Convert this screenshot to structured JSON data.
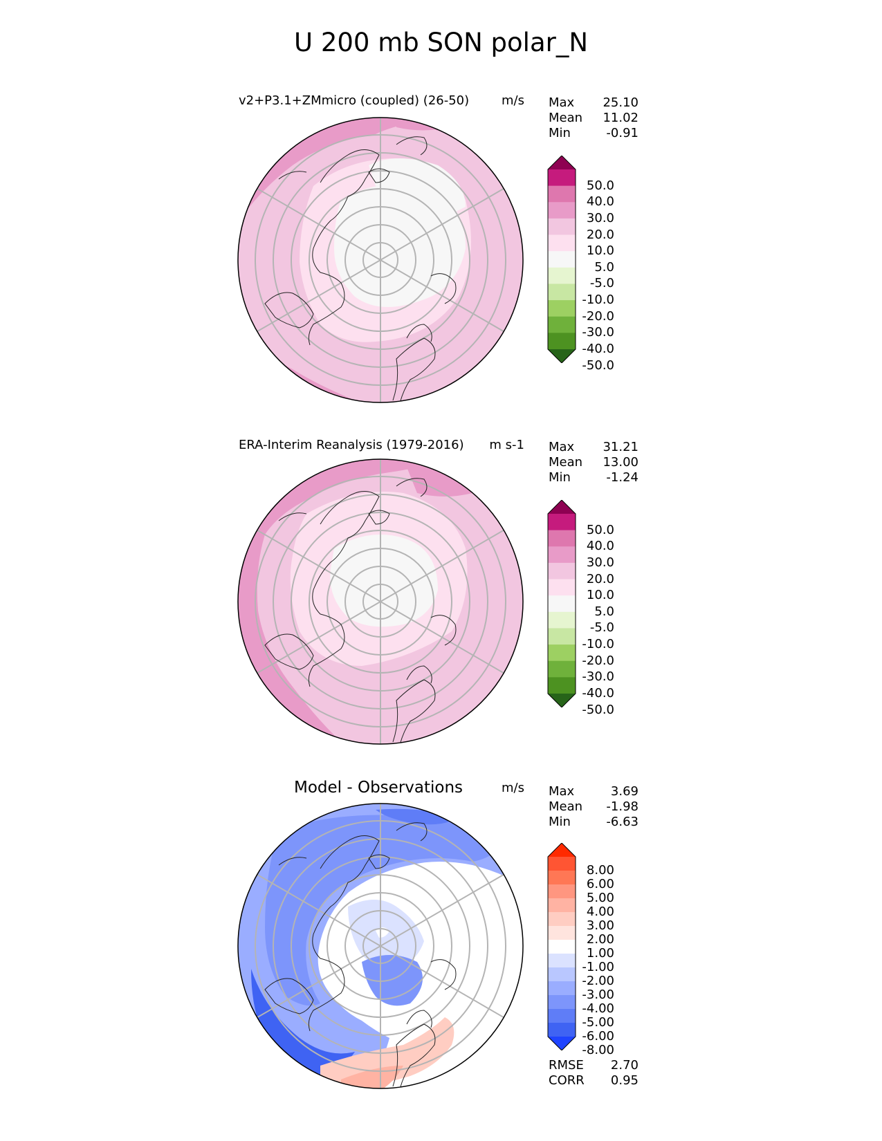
{
  "figure": {
    "title": "U 200 mb SON polar_N"
  },
  "panels": [
    {
      "title": "v2+P3.1+ZMmicro (coupled) (26-50)",
      "units": "m/s",
      "stats": [
        {
          "label": "Max",
          "value": "25.10"
        },
        {
          "label": "Mean",
          "value": "11.02"
        },
        {
          "label": "Min",
          "value": "-0.91"
        }
      ],
      "colorbar": {
        "labels": [
          "50.0",
          "40.0",
          "30.0",
          "20.0",
          "10.0",
          "5.0",
          "-5.0",
          "-10.0",
          "-20.0",
          "-30.0",
          "-40.0",
          "-50.0"
        ],
        "colors": [
          "#8e0152",
          "#c51b7d",
          "#de77ae",
          "#e89bc8",
          "#f2c6e0",
          "#fde0ef",
          "#f7f7f7",
          "#e6f5d0",
          "#c8e7a3",
          "#9dd062",
          "#6fb13b",
          "#4d9221",
          "#276419"
        ]
      }
    },
    {
      "title": "ERA-Interim Reanalysis (1979-2016)",
      "units": "m s-1",
      "stats": [
        {
          "label": "Max",
          "value": "31.21"
        },
        {
          "label": "Mean",
          "value": "13.00"
        },
        {
          "label": "Min",
          "value": "-1.24"
        }
      ],
      "colorbar": {
        "labels": [
          "50.0",
          "40.0",
          "30.0",
          "20.0",
          "10.0",
          "5.0",
          "-5.0",
          "-10.0",
          "-20.0",
          "-30.0",
          "-40.0",
          "-50.0"
        ],
        "colors": [
          "#8e0152",
          "#c51b7d",
          "#de77ae",
          "#e89bc8",
          "#f2c6e0",
          "#fde0ef",
          "#f7f7f7",
          "#e6f5d0",
          "#c8e7a3",
          "#9dd062",
          "#6fb13b",
          "#4d9221",
          "#276419"
        ]
      }
    },
    {
      "title": "Model - Observations",
      "units": "m/s",
      "stats": [
        {
          "label": "Max",
          "value": "3.69"
        },
        {
          "label": "Mean",
          "value": "-1.98"
        },
        {
          "label": "Min",
          "value": "-6.63"
        }
      ],
      "colorbar": {
        "labels": [
          "8.00",
          "6.00",
          "5.00",
          "4.00",
          "3.00",
          "2.00",
          "1.00",
          "-1.00",
          "-2.00",
          "-3.00",
          "-4.00",
          "-5.00",
          "-6.00",
          "-8.00"
        ],
        "colors": [
          "#ff2a00",
          "#ff5533",
          "#ff7755",
          "#ff9680",
          "#ffb3a3",
          "#ffcdc2",
          "#ffe4de",
          "#ffffff",
          "#dbe2ff",
          "#b9c7ff",
          "#9aadff",
          "#7d95fb",
          "#5f7df7",
          "#3f63f3",
          "#1f44ff"
        ]
      },
      "metrics": [
        {
          "label": "RMSE",
          "value": "2.70"
        },
        {
          "label": "CORR",
          "value": "0.95"
        }
      ]
    }
  ]
}
